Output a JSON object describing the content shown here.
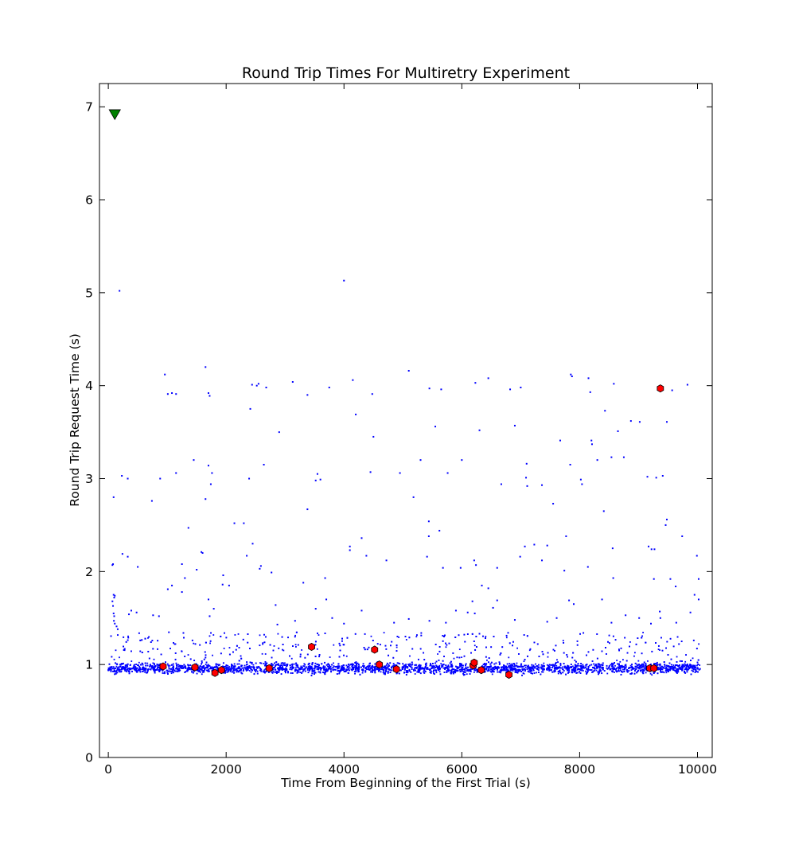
{
  "chart_data": {
    "type": "scatter",
    "title": "Round Trip Times For Multiretry Experiment",
    "xlabel": "Time From Beginning of the First Trial (s)",
    "ylabel": "Round Trip Request Time (s)",
    "xlim": [
      -150,
      10250
    ],
    "ylim": [
      0,
      7.25
    ],
    "xticks": [
      0,
      2000,
      4000,
      6000,
      8000,
      10000
    ],
    "xtick_labels": [
      "0",
      "2000",
      "4000",
      "6000",
      "8000",
      "10000"
    ],
    "yticks": [
      0,
      1,
      2,
      3,
      4,
      5,
      6,
      7
    ],
    "ytick_labels": [
      "0",
      "1",
      "2",
      "3",
      "4",
      "5",
      "6",
      "7"
    ],
    "grid": false,
    "legend": "none",
    "series": [
      {
        "marker": "point",
        "color": "#0000ff",
        "description_values": "dense band of request times between roughly 0.87 s and 1.05 s across x = 0 to 10000, plus scattered outliers listed below",
        "band": {
          "x_range": [
            0,
            10050
          ],
          "y_range": [
            0.86,
            1.06
          ],
          "approx_points": 5200
        },
        "outliers": [
          [
            190,
            5.02
          ],
          [
            4000,
            5.13
          ],
          [
            1650,
            4.2
          ],
          [
            960,
            4.12
          ],
          [
            1010,
            3.91
          ],
          [
            1080,
            3.92
          ],
          [
            1150,
            3.91
          ],
          [
            1700,
            3.92
          ],
          [
            1720,
            3.89
          ],
          [
            2440,
            4.01
          ],
          [
            2520,
            4.0
          ],
          [
            2550,
            4.02
          ],
          [
            2680,
            3.98
          ],
          [
            3130,
            4.04
          ],
          [
            3380,
            3.9
          ],
          [
            3750,
            3.98
          ],
          [
            4150,
            4.06
          ],
          [
            4480,
            3.91
          ],
          [
            5100,
            4.16
          ],
          [
            5450,
            3.97
          ],
          [
            5650,
            3.96
          ],
          [
            6230,
            4.03
          ],
          [
            6450,
            4.08
          ],
          [
            6820,
            3.96
          ],
          [
            7000,
            3.98
          ],
          [
            7850,
            4.12
          ],
          [
            7870,
            4.1
          ],
          [
            8150,
            4.08
          ],
          [
            8180,
            3.93
          ],
          [
            8580,
            4.02
          ],
          [
            9570,
            3.95
          ],
          [
            9830,
            4.01
          ],
          [
            2410,
            3.75
          ],
          [
            4200,
            3.69
          ],
          [
            8430,
            3.73
          ],
          [
            8870,
            3.62
          ],
          [
            9020,
            3.61
          ],
          [
            9480,
            3.61
          ],
          [
            6900,
            3.57
          ],
          [
            5550,
            3.56
          ],
          [
            6300,
            3.52
          ],
          [
            2900,
            3.5
          ],
          [
            8650,
            3.51
          ],
          [
            4500,
            3.45
          ],
          [
            7670,
            3.41
          ],
          [
            8200,
            3.41
          ],
          [
            8210,
            3.37
          ],
          [
            1450,
            3.2
          ],
          [
            5300,
            3.2
          ],
          [
            6000,
            3.2
          ],
          [
            7100,
            3.16
          ],
          [
            8300,
            3.2
          ],
          [
            8540,
            3.23
          ],
          [
            8750,
            3.23
          ],
          [
            7840,
            3.15
          ],
          [
            1700,
            3.14
          ],
          [
            2640,
            3.15
          ],
          [
            1760,
            3.06
          ],
          [
            1150,
            3.06
          ],
          [
            3550,
            3.05
          ],
          [
            4450,
            3.07
          ],
          [
            4950,
            3.06
          ],
          [
            5760,
            3.06
          ],
          [
            9150,
            3.02
          ],
          [
            9300,
            3.01
          ],
          [
            9410,
            3.03
          ],
          [
            230,
            3.03
          ],
          [
            330,
            3.0
          ],
          [
            880,
            3.0
          ],
          [
            2390,
            3.0
          ],
          [
            3520,
            2.98
          ],
          [
            3600,
            2.99
          ],
          [
            7090,
            3.01
          ],
          [
            8020,
            2.99
          ],
          [
            8040,
            2.94
          ],
          [
            6670,
            2.94
          ],
          [
            7110,
            2.92
          ],
          [
            7360,
            2.93
          ],
          [
            1740,
            2.94
          ],
          [
            90,
            2.8
          ],
          [
            5180,
            2.8
          ],
          [
            7550,
            2.73
          ],
          [
            740,
            2.76
          ],
          [
            1650,
            2.78
          ],
          [
            3380,
            2.67
          ],
          [
            8410,
            2.65
          ],
          [
            9480,
            2.56
          ],
          [
            9460,
            2.5
          ],
          [
            5440,
            2.54
          ],
          [
            2140,
            2.52
          ],
          [
            2300,
            2.52
          ],
          [
            1360,
            2.47
          ],
          [
            5620,
            2.44
          ],
          [
            7770,
            2.38
          ],
          [
            9740,
            2.38
          ],
          [
            4300,
            2.36
          ],
          [
            5440,
            2.38
          ],
          [
            2450,
            2.3
          ],
          [
            4100,
            2.27
          ],
          [
            4100,
            2.23
          ],
          [
            7230,
            2.29
          ],
          [
            7450,
            2.28
          ],
          [
            9220,
            2.24
          ],
          [
            9270,
            2.24
          ],
          [
            9170,
            2.27
          ],
          [
            7070,
            2.27
          ],
          [
            8560,
            2.25
          ],
          [
            1580,
            2.21
          ],
          [
            1600,
            2.2
          ],
          [
            240,
            2.19
          ],
          [
            330,
            2.16
          ],
          [
            2350,
            2.17
          ],
          [
            4380,
            2.17
          ],
          [
            5410,
            2.16
          ],
          [
            6990,
            2.16
          ],
          [
            9990,
            2.17
          ],
          [
            4720,
            2.12
          ],
          [
            6210,
            2.12
          ],
          [
            6240,
            2.07
          ],
          [
            7360,
            2.12
          ],
          [
            1250,
            2.08
          ],
          [
            2590,
            2.06
          ],
          [
            70,
            2.07
          ],
          [
            80,
            2.08
          ],
          [
            500,
            2.05
          ],
          [
            2570,
            2.03
          ],
          [
            2770,
            1.99
          ],
          [
            1500,
            2.02
          ],
          [
            5680,
            2.04
          ],
          [
            5980,
            2.04
          ],
          [
            6600,
            2.04
          ],
          [
            8140,
            2.05
          ],
          [
            7740,
            2.01
          ],
          [
            1300,
            1.93
          ],
          [
            1950,
            1.96
          ],
          [
            3680,
            1.93
          ],
          [
            9540,
            1.92
          ],
          [
            10020,
            1.92
          ],
          [
            1940,
            1.86
          ],
          [
            1010,
            1.81
          ],
          [
            1080,
            1.85
          ],
          [
            1250,
            1.78
          ],
          [
            2050,
            1.85
          ],
          [
            3310,
            1.88
          ],
          [
            8570,
            1.93
          ],
          [
            9260,
            1.92
          ],
          [
            8380,
            1.7
          ],
          [
            6340,
            1.85
          ],
          [
            6450,
            1.82
          ],
          [
            9630,
            1.84
          ],
          [
            9950,
            1.75
          ],
          [
            10020,
            1.7
          ],
          [
            90,
            1.75
          ],
          [
            100,
            1.72
          ],
          [
            110,
            1.74
          ],
          [
            70,
            1.68
          ],
          [
            80,
            1.63
          ],
          [
            90,
            1.55
          ],
          [
            100,
            1.52
          ],
          [
            95,
            1.47
          ],
          [
            110,
            1.44
          ],
          [
            140,
            1.41
          ],
          [
            160,
            1.38
          ],
          [
            1720,
            1.52
          ],
          [
            1700,
            1.7
          ],
          [
            1790,
            1.6
          ],
          [
            2840,
            1.64
          ],
          [
            3700,
            1.7
          ],
          [
            3520,
            1.6
          ],
          [
            4300,
            1.58
          ],
          [
            4850,
            1.45
          ],
          [
            5900,
            1.58
          ],
          [
            6100,
            1.56
          ],
          [
            6180,
            1.68
          ],
          [
            6220,
            1.55
          ],
          [
            6600,
            1.69
          ],
          [
            6530,
            1.61
          ],
          [
            7610,
            1.5
          ],
          [
            7820,
            1.69
          ],
          [
            7900,
            1.65
          ],
          [
            8780,
            1.53
          ],
          [
            9010,
            1.5
          ],
          [
            9210,
            1.44
          ],
          [
            9370,
            1.5
          ],
          [
            9880,
            1.56
          ],
          [
            9640,
            1.45
          ],
          [
            350,
            1.54
          ],
          [
            390,
            1.58
          ],
          [
            480,
            1.56
          ],
          [
            760,
            1.53
          ],
          [
            860,
            1.52
          ],
          [
            4000,
            1.44
          ],
          [
            2870,
            1.43
          ],
          [
            3170,
            1.47
          ],
          [
            3800,
            1.5
          ],
          [
            5100,
            1.49
          ],
          [
            5450,
            1.47
          ],
          [
            5730,
            1.45
          ],
          [
            6900,
            1.48
          ],
          [
            7450,
            1.46
          ],
          [
            8540,
            1.45
          ],
          [
            9360,
            1.57
          ]
        ]
      },
      {
        "marker": "hexagon",
        "color": "#ff0000",
        "values": [
          [
            930,
            0.98
          ],
          [
            1470,
            0.97
          ],
          [
            1810,
            0.91
          ],
          [
            1920,
            0.94
          ],
          [
            2730,
            0.96
          ],
          [
            3450,
            1.19
          ],
          [
            4520,
            1.16
          ],
          [
            4600,
            1.0
          ],
          [
            4890,
            0.95
          ],
          [
            6190,
            0.99
          ],
          [
            6210,
            1.02
          ],
          [
            6330,
            0.94
          ],
          [
            6800,
            0.89
          ],
          [
            9190,
            0.96
          ],
          [
            9260,
            0.96
          ],
          [
            9370,
            3.97
          ]
        ]
      },
      {
        "marker": "triangle-down",
        "color": "#008000",
        "values": [
          [
            110,
            6.92
          ]
        ]
      }
    ]
  }
}
